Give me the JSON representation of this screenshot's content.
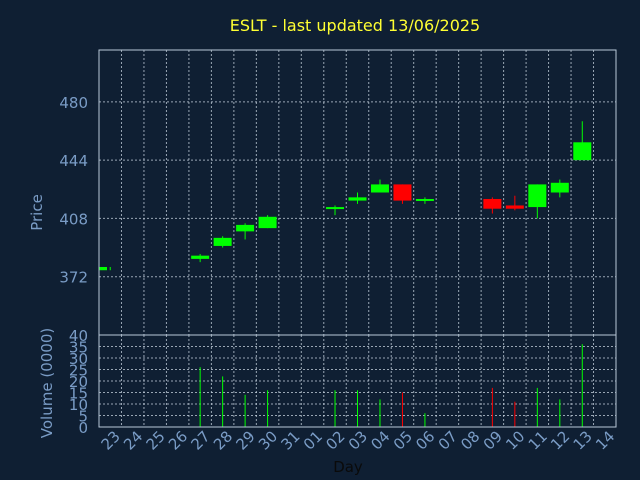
{
  "chart_data": {
    "type": "candlestick",
    "title": "ESLT - last updated 13/06/2025",
    "xlabel": "Day",
    "price_panel": {
      "ylabel": "Price",
      "ylim": [
        336,
        512
      ],
      "yticks": [
        372,
        408,
        444,
        480
      ],
      "grid": true
    },
    "volume_panel": {
      "ylabel": "Volume (0000)",
      "ylim": [
        0,
        40
      ],
      "yticks": [
        0,
        5,
        10,
        15,
        20,
        25,
        30,
        35,
        40
      ],
      "grid": true
    },
    "days": [
      "23",
      "24",
      "25",
      "26",
      "27",
      "28",
      "29",
      "30",
      "31",
      "01",
      "02",
      "03",
      "04",
      "05",
      "06",
      "07",
      "08",
      "09",
      "10",
      "11",
      "12",
      "13",
      "14"
    ],
    "candles": [
      {
        "day": "23",
        "open": 376,
        "close": 378,
        "high": 378,
        "low": 376,
        "volume": 0
      },
      {
        "day": "27",
        "open": 383,
        "close": 385,
        "high": 386,
        "low": 381,
        "volume": 26
      },
      {
        "day": "28",
        "open": 391,
        "close": 396,
        "high": 397,
        "low": 390,
        "volume": 22
      },
      {
        "day": "29",
        "open": 400,
        "close": 404,
        "high": 405,
        "low": 395,
        "volume": 14
      },
      {
        "day": "30",
        "open": 402,
        "close": 409,
        "high": 410,
        "low": 402,
        "volume": 16
      },
      {
        "day": "02",
        "open": 414,
        "close": 415,
        "high": 416,
        "low": 410,
        "volume": 16
      },
      {
        "day": "03",
        "open": 419,
        "close": 421,
        "high": 424,
        "low": 417,
        "volume": 16
      },
      {
        "day": "04",
        "open": 424,
        "close": 429,
        "high": 432,
        "low": 424,
        "volume": 12
      },
      {
        "day": "05",
        "open": 429,
        "close": 419,
        "high": 429,
        "low": 417,
        "volume": 15
      },
      {
        "day": "06",
        "open": 419,
        "close": 420,
        "high": 421,
        "low": 417,
        "volume": 6
      },
      {
        "day": "09",
        "open": 420,
        "close": 414,
        "high": 421,
        "low": 411,
        "volume": 17
      },
      {
        "day": "10",
        "open": 416,
        "close": 414,
        "high": 422,
        "low": 413,
        "volume": 11
      },
      {
        "day": "11",
        "open": 415,
        "close": 429,
        "high": 429,
        "low": 408,
        "volume": 17
      },
      {
        "day": "12",
        "open": 424,
        "close": 430,
        "high": 432,
        "low": 421,
        "volume": 12
      },
      {
        "day": "13",
        "open": 444,
        "close": 455,
        "high": 468,
        "low": 444,
        "volume": 36
      }
    ],
    "colors": {
      "background": "#0f1f33",
      "title": "#ffff33",
      "axis_text": "#7a9cc6",
      "frame": "#b8c8d8",
      "grid": "#c8d4e0",
      "up": "#00ff00",
      "down": "#ff0000"
    }
  }
}
